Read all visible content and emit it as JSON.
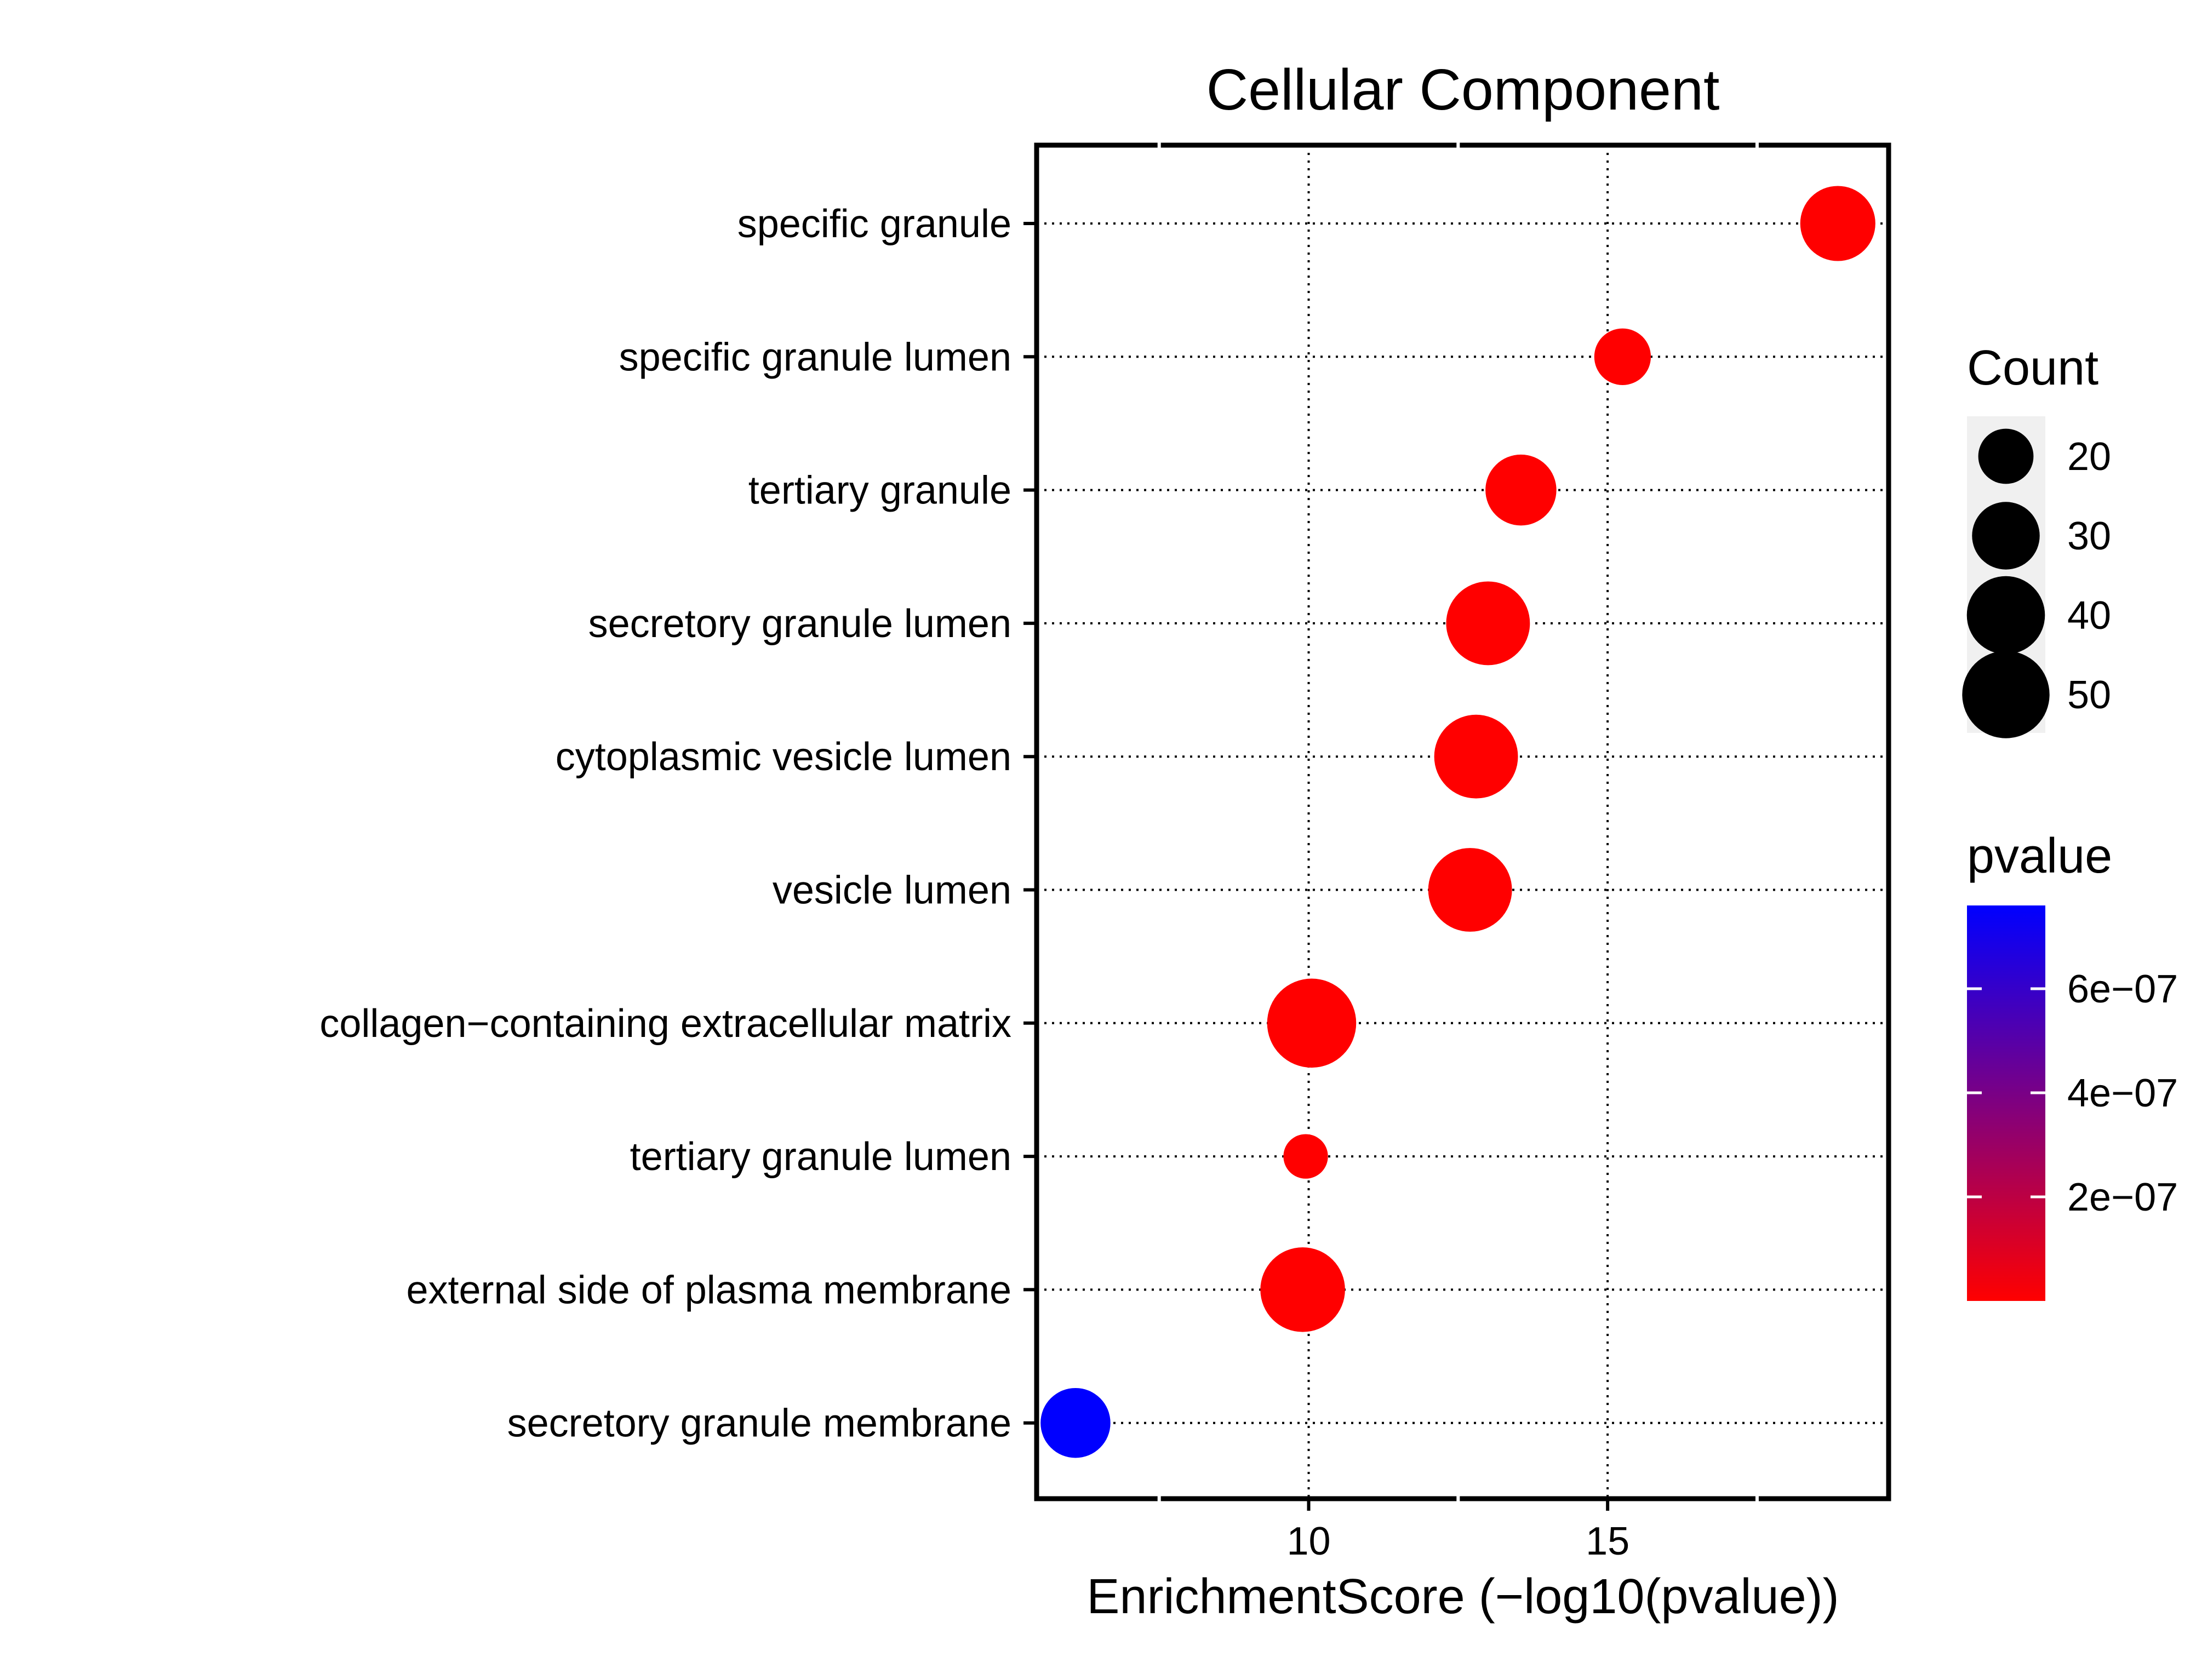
{
  "chart_data": {
    "type": "scatter",
    "title": "Cellular Component",
    "xlabel": "EnrichmentScore (−log10(pvalue))",
    "ylabel": "",
    "xlim": [
      5.45,
      19.7
    ],
    "x_ticks": [
      10,
      15
    ],
    "x_minor_ticks": [
      7.5,
      12.5,
      17.5
    ],
    "grid": true,
    "categories": [
      "specific granule",
      "specific granule lumen",
      "tertiary granule",
      "secretory granule lumen",
      "cytoplasmic vesicle lumen",
      "vesicle lumen",
      "collagen−containing extracellular matrix",
      "tertiary granule lumen",
      "external side of plasma membrane",
      "secretory granule membrane"
    ],
    "points": [
      {
        "term": "specific granule",
        "x": 18.85,
        "count": 37,
        "pvalue": 1.4e-19
      },
      {
        "term": "specific granule lumen",
        "x": 15.25,
        "count": 21,
        "pvalue": 5.6e-16
      },
      {
        "term": "tertiary granule",
        "x": 13.55,
        "count": 33,
        "pvalue": 2.8e-14
      },
      {
        "term": "secretory granule lumen",
        "x": 13.0,
        "count": 46,
        "pvalue": 1e-13
      },
      {
        "term": "cytoplasmic vesicle lumen",
        "x": 12.8,
        "count": 46,
        "pvalue": 1.6e-13
      },
      {
        "term": "vesicle lumen",
        "x": 12.7,
        "count": 46,
        "pvalue": 2e-13
      },
      {
        "term": "collagen−containing extracellular matrix",
        "x": 10.05,
        "count": 52,
        "pvalue": 8.9e-11
      },
      {
        "term": "tertiary granule lumen",
        "x": 9.95,
        "count": 13,
        "pvalue": 1.1e-10
      },
      {
        "term": "external side of plasma membrane",
        "x": 9.9,
        "count": 47,
        "pvalue": 1.3e-10
      },
      {
        "term": "secretory granule membrane",
        "x": 6.1,
        "count": 32,
        "pvalue": 7.6e-07
      }
    ],
    "legend_size": {
      "title": "Count",
      "values": [
        20,
        30,
        40,
        50
      ],
      "labels": [
        "20",
        "30",
        "40",
        "50"
      ]
    },
    "legend_color": {
      "title": "pvalue",
      "range": [
        1.4e-19,
        7.6e-07
      ],
      "ticks": [
        2e-07,
        4e-07,
        6e-07
      ],
      "tick_labels": [
        "2e−07",
        "4e−07",
        "6e−07"
      ],
      "low_color": "#FF0000",
      "high_color": "#0000FF"
    }
  }
}
